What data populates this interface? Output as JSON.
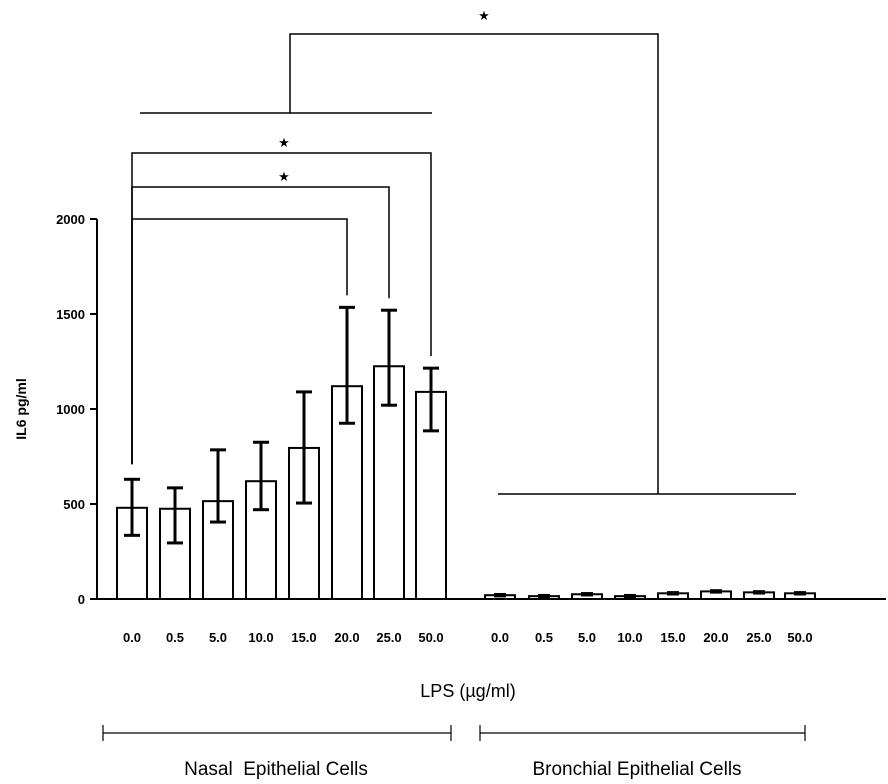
{
  "chart_data": {
    "type": "bar",
    "ylabel": "IL6 pg/ml",
    "xlabel": "LPS (µg/ml)",
    "ylim": [
      0,
      2000
    ],
    "yticks": [
      "0",
      "500",
      "1000",
      "1500",
      "2000"
    ],
    "groups": [
      {
        "name": "Nasal  Epithelial Cells",
        "categories": [
          "0.0",
          "0.5",
          "5.0",
          "10.0",
          "15.0",
          "20.0",
          "25.0",
          "50.0"
        ],
        "values": [
          480,
          475,
          515,
          620,
          795,
          1120,
          1225,
          1090
        ],
        "error_low": [
          335,
          295,
          405,
          470,
          505,
          925,
          1020,
          885
        ],
        "error_high": [
          630,
          585,
          785,
          825,
          1090,
          1535,
          1520,
          1215
        ]
      },
      {
        "name": "Bronchial Epithelial Cells",
        "categories": [
          "0.0",
          "0.5",
          "5.0",
          "10.0",
          "15.0",
          "20.0",
          "25.0",
          "50.0"
        ],
        "values": [
          20,
          15,
          25,
          15,
          30,
          40,
          35,
          30
        ],
        "error_low": [
          15,
          10,
          20,
          10,
          25,
          35,
          30,
          25
        ],
        "error_high": [
          25,
          20,
          30,
          20,
          35,
          45,
          40,
          35
        ]
      }
    ],
    "significance": [
      {
        "from": "0.0",
        "to": "20.0",
        "group": "Nasal  Epithelial Cells",
        "label": ""
      },
      {
        "from": "0.0",
        "to": "25.0",
        "group": "Nasal  Epithelial Cells",
        "label": "★"
      },
      {
        "from": "0.0",
        "to": "50.0",
        "group": "Nasal  Epithelial Cells",
        "label": "★"
      },
      {
        "from": "Nasal  Epithelial Cells",
        "to": "Bronchial Epithelial Cells",
        "label": "★"
      }
    ]
  }
}
